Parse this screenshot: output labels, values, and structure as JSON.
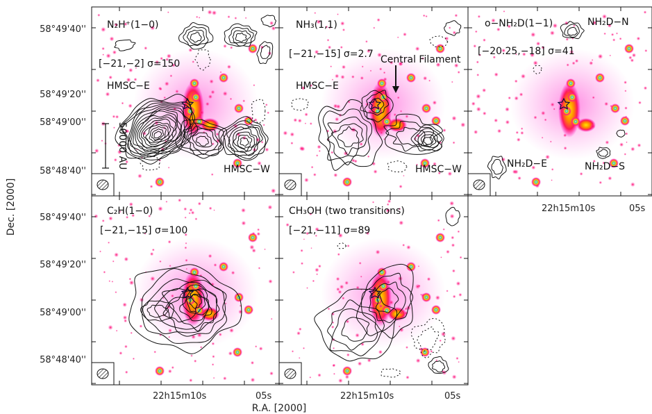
{
  "figure": {
    "x_axis_title": "R.A. [2000]",
    "y_axis_title": "Dec. [2000]",
    "dec_ticks": [
      "58°49'40''",
      "58°49'20''",
      "58°49'00''",
      "58°48'40''"
    ],
    "ra_ticks": [
      "22h15m10s",
      "05s"
    ]
  },
  "panels": [
    {
      "id": "n2h",
      "species": "N₂H⁺(1−0)",
      "range_label": "[−21,−2] σ=150",
      "annotations": [
        "HMSC−E",
        "HMSC−W"
      ],
      "scalebar_label": "50000 AU"
    },
    {
      "id": "nh3",
      "species": "NH₃(1,1)",
      "range_label": "[−21,−15] σ=2.7",
      "annotations": [
        "HMSC−E",
        "HMSC−W",
        "Central Filament"
      ]
    },
    {
      "id": "nh2d",
      "species": "o−NH₂D(1−1)",
      "range_label": "[−20.25,−18] σ=41",
      "annotations": [
        "NH₂D−N",
        "NH₂D−E",
        "NH₂D−S"
      ]
    },
    {
      "id": "c2h",
      "species": "C₂H(1−0)",
      "range_label": "[−21,−15] σ=100",
      "annotations": []
    },
    {
      "id": "ch3oh",
      "species": "CH₃OH (two transitions)",
      "range_label": "[−21,−11] σ=89",
      "annotations": []
    }
  ]
}
